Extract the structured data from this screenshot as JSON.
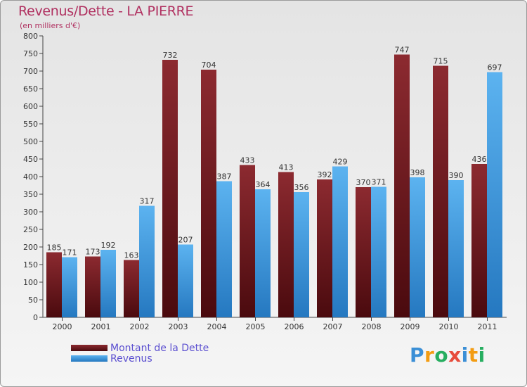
{
  "title": "Revenus/Dette - LA PIERRE",
  "subtitle": "(en milliers d'€)",
  "brand": {
    "letters": [
      "P",
      "r",
      "o",
      "x",
      "i",
      "t",
      "i"
    ],
    "colors": [
      "#3b8fd6",
      "#f39c12",
      "#27ae60",
      "#e74c3c",
      "#3b8fd6",
      "#f39c12",
      "#27ae60"
    ]
  },
  "chart_data": {
    "type": "bar",
    "categories": [
      "2000",
      "2001",
      "2002",
      "2003",
      "2004",
      "2005",
      "2006",
      "2007",
      "2008",
      "2009",
      "2010",
      "2011"
    ],
    "series": [
      {
        "name": "Montant de la Dette",
        "color": "#7a1f24",
        "values": [
          185,
          173,
          163,
          732,
          704,
          433,
          413,
          392,
          370,
          747,
          715,
          436
        ]
      },
      {
        "name": "Revenus",
        "color": "#4aa3e8",
        "values": [
          171,
          192,
          317,
          207,
          387,
          364,
          356,
          429,
          371,
          398,
          390,
          697
        ]
      }
    ],
    "ylim": [
      0,
      800
    ],
    "yticks": [
      0,
      50,
      100,
      150,
      200,
      250,
      300,
      350,
      400,
      450,
      500,
      550,
      600,
      650,
      700,
      750,
      800
    ],
    "xlabel": "",
    "ylabel": "",
    "grid": false,
    "legend": "bottom-left"
  }
}
